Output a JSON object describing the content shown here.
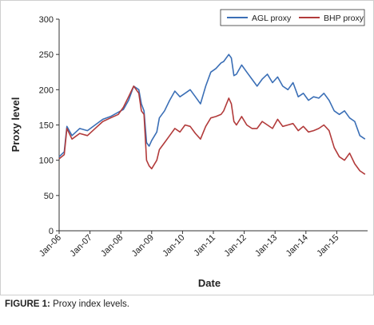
{
  "figure": {
    "caption_label": "FIGURE 1:",
    "caption_text": " Proxy index levels."
  },
  "chart_data": {
    "type": "line",
    "xlabel": "Date",
    "ylabel": "Proxy level",
    "ylim": [
      0,
      300
    ],
    "yticks": [
      "0",
      "50",
      "100",
      "150",
      "200",
      "250",
      "300"
    ],
    "xticks": [
      "Jan-06",
      "Jan-07",
      "Jan-08",
      "Jan-09",
      "Jan-10",
      "Jan-11",
      "Jan-12",
      "Jan-13",
      "Jan-14",
      "Jan-15"
    ],
    "grid": false,
    "legend_position": "top-right",
    "series": [
      {
        "name": "AGL proxy",
        "color": "#3b6fb6",
        "x": [
          "2006-01",
          "2006-03",
          "2006-04",
          "2006-06",
          "2006-09",
          "2006-12",
          "2007-03",
          "2007-06",
          "2007-09",
          "2007-12",
          "2008-02",
          "2008-04",
          "2008-06",
          "2008-08",
          "2008-09",
          "2008-10",
          "2008-11",
          "2008-12",
          "2009-01",
          "2009-03",
          "2009-04",
          "2009-06",
          "2009-08",
          "2009-10",
          "2009-12",
          "2010-02",
          "2010-04",
          "2010-06",
          "2010-08",
          "2010-10",
          "2010-12",
          "2011-02",
          "2011-04",
          "2011-05",
          "2011-07",
          "2011-08",
          "2011-09",
          "2011-10",
          "2011-12",
          "2012-02",
          "2012-04",
          "2012-06",
          "2012-08",
          "2012-10",
          "2012-12",
          "2013-02",
          "2013-04",
          "2013-06",
          "2013-08",
          "2013-10",
          "2013-12",
          "2014-02",
          "2014-04",
          "2014-06",
          "2014-08",
          "2014-10",
          "2014-12",
          "2015-02",
          "2015-04",
          "2015-06",
          "2015-08",
          "2015-10",
          "2015-12"
        ],
        "values": [
          105,
          112,
          148,
          135,
          145,
          142,
          150,
          158,
          162,
          168,
          172,
          185,
          205,
          200,
          180,
          170,
          125,
          120,
          128,
          140,
          160,
          170,
          185,
          198,
          190,
          195,
          200,
          190,
          180,
          205,
          225,
          230,
          238,
          240,
          250,
          245,
          220,
          222,
          235,
          225,
          215,
          205,
          215,
          222,
          210,
          218,
          205,
          200,
          210,
          190,
          195,
          185,
          190,
          188,
          195,
          185,
          170,
          165,
          170,
          160,
          155,
          135,
          130
        ]
      },
      {
        "name": "BHP proxy",
        "color": "#b23b3b",
        "x": [
          "2006-01",
          "2006-03",
          "2006-04",
          "2006-06",
          "2006-09",
          "2006-12",
          "2007-03",
          "2007-06",
          "2007-09",
          "2007-12",
          "2008-02",
          "2008-04",
          "2008-06",
          "2008-08",
          "2008-09",
          "2008-10",
          "2008-11",
          "2008-12",
          "2009-01",
          "2009-03",
          "2009-04",
          "2009-06",
          "2009-08",
          "2009-10",
          "2009-12",
          "2010-02",
          "2010-04",
          "2010-06",
          "2010-08",
          "2010-10",
          "2010-12",
          "2011-02",
          "2011-04",
          "2011-05",
          "2011-07",
          "2011-08",
          "2011-09",
          "2011-10",
          "2011-12",
          "2012-02",
          "2012-04",
          "2012-06",
          "2012-08",
          "2012-10",
          "2012-12",
          "2013-02",
          "2013-04",
          "2013-06",
          "2013-08",
          "2013-10",
          "2013-12",
          "2014-02",
          "2014-04",
          "2014-06",
          "2014-08",
          "2014-10",
          "2014-12",
          "2015-02",
          "2015-04",
          "2015-06",
          "2015-08",
          "2015-10",
          "2015-12"
        ],
        "values": [
          102,
          108,
          145,
          130,
          138,
          135,
          145,
          155,
          160,
          165,
          175,
          190,
          205,
          195,
          170,
          165,
          100,
          92,
          88,
          100,
          115,
          125,
          135,
          145,
          140,
          150,
          148,
          138,
          130,
          148,
          160,
          162,
          165,
          170,
          188,
          180,
          155,
          150,
          162,
          150,
          145,
          145,
          155,
          150,
          145,
          158,
          148,
          150,
          152,
          142,
          148,
          140,
          142,
          145,
          150,
          142,
          118,
          105,
          100,
          110,
          95,
          85,
          80
        ]
      }
    ]
  }
}
